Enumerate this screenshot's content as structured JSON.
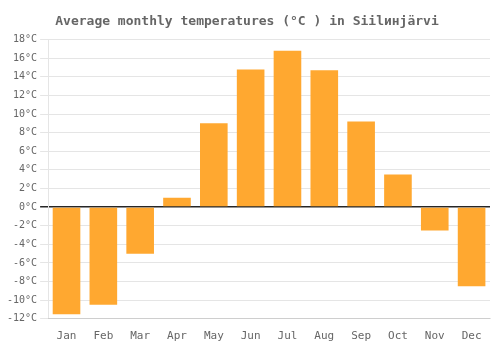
{
  "chart_data": {
    "type": "bar",
    "title": "Average monthly temperatures (°C ) in Siilинjärvi",
    "categories": [
      "Jan",
      "Feb",
      "Mar",
      "Apr",
      "May",
      "Jun",
      "Jul",
      "Aug",
      "Sep",
      "Oct",
      "Nov",
      "Dec"
    ],
    "values": [
      -11.5,
      -10.5,
      -5.0,
      1.0,
      9.0,
      14.8,
      16.8,
      14.7,
      9.2,
      3.5,
      -2.5,
      -8.5
    ],
    "color": "#FFA830",
    "ylim": [
      -12,
      18
    ],
    "yticks": [
      {
        "value": -12,
        "label": "-12°C"
      },
      {
        "value": -10,
        "label": "-10°C"
      },
      {
        "value": -8,
        "label": "-8°C"
      },
      {
        "value": -6,
        "label": "-6°C"
      },
      {
        "value": -4,
        "label": "-4°C"
      },
      {
        "value": -2,
        "label": "-2°C"
      },
      {
        "value": 0,
        "label": "0°C"
      },
      {
        "value": 2,
        "label": "2°C"
      },
      {
        "value": 4,
        "label": "4°C"
      },
      {
        "value": 6,
        "label": "6°C"
      },
      {
        "value": 8,
        "label": "8°C"
      },
      {
        "value": 10,
        "label": "10°C"
      },
      {
        "value": 12,
        "label": "12°C"
      },
      {
        "value": 14,
        "label": "14°C"
      },
      {
        "value": 16,
        "label": "16°C"
      },
      {
        "value": 18,
        "label": "18°C"
      }
    ],
    "grid": true
  }
}
